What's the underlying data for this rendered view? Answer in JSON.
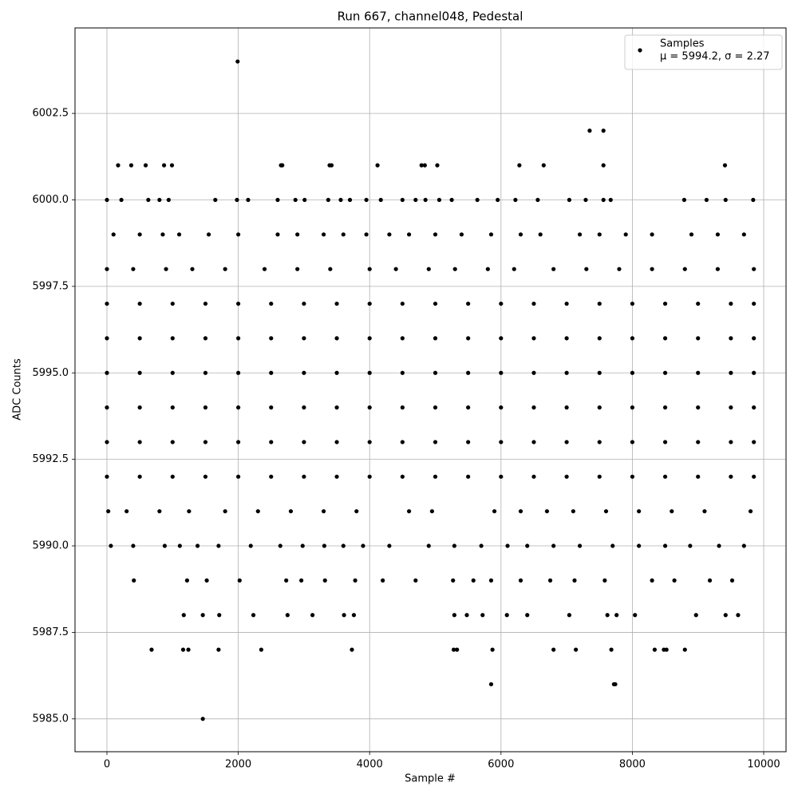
{
  "chart_data": {
    "type": "scatter",
    "title": "Run 667, channel048, Pedestal",
    "x_label": "Sample #",
    "y_label": "ADC Counts",
    "xlim": [
      -486,
      10340
    ],
    "ylim": [
      5984.05,
      6004.97
    ],
    "xticks": [
      0,
      2000,
      4000,
      6000,
      8000,
      10000
    ],
    "yticks": [
      {
        "value": 5985,
        "label": "5985.0"
      },
      {
        "value": 5987.5,
        "label": "5987.5"
      },
      {
        "value": 5990,
        "label": "5990.0"
      },
      {
        "value": 5992.5,
        "label": "5992.5"
      },
      {
        "value": 5995,
        "label": "5995.0"
      },
      {
        "value": 5997.5,
        "label": "5997.5"
      },
      {
        "value": 6000,
        "label": "6000.0"
      },
      {
        "value": 6002.5,
        "label": "6002.5"
      }
    ],
    "grid": true,
    "legend": "upper right",
    "stats_label": "μ = 5994.2, σ = 2.27",
    "series": [
      {
        "name": "Samples",
        "color": "#000000",
        "x": [
          1990,
          1460,
          5850,
          7720,
          7740,
          7350,
          7560,
          170,
          370,
          590,
          870,
          990,
          2650,
          2670,
          3390,
          3420,
          4120,
          4790,
          4840,
          5030,
          6280,
          6650,
          7560,
          9410,
          680,
          1160,
          1240,
          1700,
          2350,
          3730,
          5280,
          5330,
          5870,
          6800,
          7140,
          7680,
          8340,
          8480,
          8520,
          8800,
          1170,
          1460,
          1710,
          2230,
          2750,
          3130,
          3610,
          3760,
          5290,
          5480,
          5720,
          6090,
          6400,
          7040,
          7620,
          7760,
          8040,
          8970,
          9420,
          9610,
          410,
          1220,
          1520,
          2020,
          2730,
          2960,
          3320,
          3780,
          4200,
          4700,
          5270,
          5580,
          5850,
          6300,
          6750,
          7120,
          7580,
          8300,
          8640,
          9180,
          9520,
          60,
          400,
          880,
          1110,
          1380,
          1700,
          2190,
          2640,
          2980,
          3310,
          3600,
          3900,
          4300,
          4900,
          5290,
          5700,
          6100,
          6400,
          6800,
          7200,
          7700,
          8100,
          8500,
          8880,
          9320,
          9700,
          20,
          300,
          800,
          1250,
          1800,
          2300,
          2800,
          3300,
          3800,
          4600,
          4950,
          5900,
          6300,
          6700,
          7100,
          7600,
          8100,
          8600,
          9100,
          9800,
          0,
          500,
          1000,
          1500,
          2000,
          2500,
          3000,
          3500,
          4000,
          4500,
          5000,
          5500,
          6000,
          6500,
          7000,
          7500,
          8000,
          8500,
          9000,
          9500,
          9850,
          0,
          500,
          1000,
          1500,
          2000,
          2500,
          3000,
          3500,
          4000,
          4500,
          5000,
          5500,
          6000,
          6500,
          7000,
          7500,
          8000,
          8500,
          9000,
          9500,
          9850,
          0,
          500,
          1000,
          1500,
          2000,
          2500,
          3000,
          3500,
          4000,
          4500,
          5000,
          5500,
          6000,
          6500,
          7000,
          7500,
          8000,
          8500,
          9000,
          9500,
          9850,
          0,
          500,
          1000,
          1500,
          2000,
          2500,
          3000,
          3500,
          4000,
          4500,
          5000,
          5500,
          6000,
          6500,
          7000,
          7500,
          8000,
          8500,
          9000,
          9500,
          9850,
          0,
          500,
          1000,
          1500,
          2000,
          2500,
          3000,
          3500,
          4000,
          4500,
          5000,
          5500,
          6000,
          6500,
          7000,
          7500,
          8000,
          8500,
          9000,
          9500,
          9850,
          0,
          500,
          1000,
          1500,
          2000,
          2500,
          3000,
          3500,
          4000,
          4500,
          5000,
          5500,
          6000,
          6500,
          7000,
          7500,
          8000,
          8500,
          9000,
          9500,
          9850,
          0,
          400,
          900,
          1300,
          1800,
          2400,
          2900,
          3400,
          4000,
          4400,
          4900,
          5300,
          5800,
          6200,
          6800,
          7300,
          7800,
          8300,
          8800,
          9300,
          9850,
          100,
          500,
          850,
          1100,
          1550,
          2000,
          2600,
          2900,
          3300,
          3600,
          3950,
          4300,
          4600,
          5000,
          5400,
          5850,
          6300,
          6600,
          7200,
          7500,
          7900,
          8300,
          8900,
          9300,
          9700,
          0,
          220,
          630,
          800,
          940,
          1650,
          1980,
          2150,
          2600,
          2870,
          3010,
          3370,
          3560,
          3700,
          3950,
          4170,
          4500,
          4700,
          4850,
          5060,
          5250,
          5640,
          5950,
          6220,
          6560,
          7040,
          7290,
          7560,
          7670,
          8790,
          9130,
          9420,
          9840
        ],
        "y": [
          6004,
          5985,
          5986,
          5986,
          5986,
          6002,
          6002,
          6001,
          6001,
          6001,
          6001,
          6001,
          6001,
          6001,
          6001,
          6001,
          6001,
          6001,
          6001,
          6001,
          6001,
          6001,
          6001,
          6001,
          5987,
          5987,
          5987,
          5987,
          5987,
          5987,
          5987,
          5987,
          5987,
          5987,
          5987,
          5987,
          5987,
          5987,
          5987,
          5987,
          5988,
          5988,
          5988,
          5988,
          5988,
          5988,
          5988,
          5988,
          5988,
          5988,
          5988,
          5988,
          5988,
          5988,
          5988,
          5988,
          5988,
          5988,
          5988,
          5988,
          5989,
          5989,
          5989,
          5989,
          5989,
          5989,
          5989,
          5989,
          5989,
          5989,
          5989,
          5989,
          5989,
          5989,
          5989,
          5989,
          5989,
          5989,
          5989,
          5989,
          5989,
          5990,
          5990,
          5990,
          5990,
          5990,
          5990,
          5990,
          5990,
          5990,
          5990,
          5990,
          5990,
          5990,
          5990,
          5990,
          5990,
          5990,
          5990,
          5990,
          5990,
          5990,
          5990,
          5990,
          5990,
          5990,
          5990,
          5991,
          5991,
          5991,
          5991,
          5991,
          5991,
          5991,
          5991,
          5991,
          5991,
          5991,
          5991,
          5991,
          5991,
          5991,
          5991,
          5991,
          5991,
          5991,
          5991,
          5992,
          5992,
          5992,
          5992,
          5992,
          5992,
          5992,
          5992,
          5992,
          5992,
          5992,
          5992,
          5992,
          5992,
          5992,
          5992,
          5992,
          5992,
          5992,
          5992,
          5992,
          5993,
          5993,
          5993,
          5993,
          5993,
          5993,
          5993,
          5993,
          5993,
          5993,
          5993,
          5993,
          5993,
          5993,
          5993,
          5993,
          5993,
          5993,
          5993,
          5993,
          5993,
          5994,
          5994,
          5994,
          5994,
          5994,
          5994,
          5994,
          5994,
          5994,
          5994,
          5994,
          5994,
          5994,
          5994,
          5994,
          5994,
          5994,
          5994,
          5994,
          5994,
          5994,
          5995,
          5995,
          5995,
          5995,
          5995,
          5995,
          5995,
          5995,
          5995,
          5995,
          5995,
          5995,
          5995,
          5995,
          5995,
          5995,
          5995,
          5995,
          5995,
          5995,
          5995,
          5996,
          5996,
          5996,
          5996,
          5996,
          5996,
          5996,
          5996,
          5996,
          5996,
          5996,
          5996,
          5996,
          5996,
          5996,
          5996,
          5996,
          5996,
          5996,
          5996,
          5996,
          5997,
          5997,
          5997,
          5997,
          5997,
          5997,
          5997,
          5997,
          5997,
          5997,
          5997,
          5997,
          5997,
          5997,
          5997,
          5997,
          5997,
          5997,
          5997,
          5997,
          5997,
          5998,
          5998,
          5998,
          5998,
          5998,
          5998,
          5998,
          5998,
          5998,
          5998,
          5998,
          5998,
          5998,
          5998,
          5998,
          5998,
          5998,
          5998,
          5998,
          5998,
          5998,
          5999,
          5999,
          5999,
          5999,
          5999,
          5999,
          5999,
          5999,
          5999,
          5999,
          5999,
          5999,
          5999,
          5999,
          5999,
          5999,
          5999,
          5999,
          5999,
          5999,
          5999,
          5999,
          5999,
          5999,
          5999,
          6000,
          6000,
          6000,
          6000,
          6000,
          6000,
          6000,
          6000,
          6000,
          6000,
          6000,
          6000,
          6000,
          6000,
          6000,
          6000,
          6000,
          6000,
          6000,
          6000,
          6000,
          6000,
          6000,
          6000,
          6000,
          6000,
          6000,
          6000,
          6000,
          6000,
          6000,
          6000,
          6000
        ]
      }
    ]
  }
}
